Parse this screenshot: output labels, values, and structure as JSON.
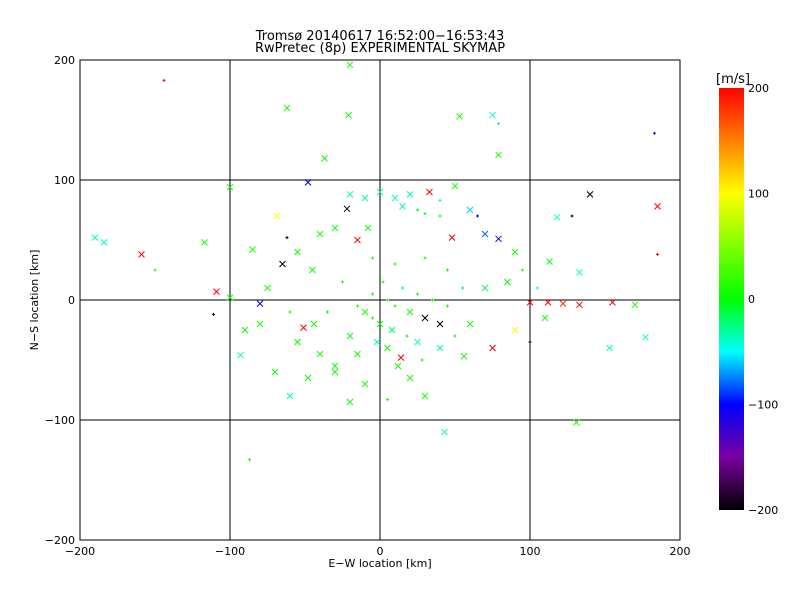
{
  "chart_data": {
    "type": "scatter",
    "title": "Tromsø 20140617 16:52:00−16:53:43",
    "subtitle": "RwPretec (8p) EXPERIMENTAL SKYMAP",
    "xlabel": "E−W location [km]",
    "ylabel": "N−S location [km]",
    "xlim": [
      -200,
      200
    ],
    "ylim": [
      -200,
      200
    ],
    "xticks": [
      "−200",
      "−100",
      "0",
      "100",
      "200"
    ],
    "xtick_values": [
      -200,
      -100,
      0,
      100,
      200
    ],
    "yticks": [
      "−200",
      "−100",
      "0",
      "100",
      "200"
    ],
    "ytick_values": [
      -200,
      -100,
      0,
      100,
      200
    ],
    "grid_values": [
      -100,
      0,
      100
    ],
    "colorbar": {
      "label": "[m/s]",
      "range": [
        -200,
        200
      ],
      "ticks": [
        "200",
        "100",
        "0",
        "−100",
        "−200"
      ],
      "tick_values": [
        200,
        100,
        0,
        -100,
        -200
      ],
      "stops": [
        {
          "v": -200,
          "color": "#000000"
        },
        {
          "v": -150,
          "color": "#7a00a0"
        },
        {
          "v": -100,
          "color": "#0000ff"
        },
        {
          "v": -50,
          "color": "#00ffff"
        },
        {
          "v": 0,
          "color": "#00ff00"
        },
        {
          "v": 100,
          "color": "#ffff00"
        },
        {
          "v": 200,
          "color": "#ff0000"
        }
      ]
    },
    "points_format": [
      "x_km",
      "y_km",
      "velocity_m_s",
      "marker"
    ],
    "points": [
      [
        -144,
        183,
        200,
        "+"
      ],
      [
        -20,
        196,
        5,
        "x"
      ],
      [
        -62,
        160,
        10,
        "x"
      ],
      [
        -21,
        154,
        5,
        "x"
      ],
      [
        53,
        153,
        10,
        "x"
      ],
      [
        75,
        154,
        -40,
        "x"
      ],
      [
        79,
        147,
        -20,
        "+"
      ],
      [
        183,
        139,
        -110,
        "+"
      ],
      [
        79,
        121,
        10,
        "x"
      ],
      [
        -37,
        118,
        5,
        "x"
      ],
      [
        -100,
        94,
        5,
        "x"
      ],
      [
        -48,
        98,
        -100,
        "x"
      ],
      [
        140,
        88,
        -200,
        "x"
      ],
      [
        33,
        90,
        200,
        "x"
      ],
      [
        185,
        78,
        200,
        "x"
      ],
      [
        -159,
        38,
        200,
        "x"
      ],
      [
        -184,
        48,
        -40,
        "x"
      ],
      [
        -190,
        52,
        -40,
        "x"
      ],
      [
        -117,
        48,
        10,
        "x"
      ],
      [
        -109,
        7,
        200,
        "x"
      ],
      [
        -100,
        2,
        10,
        "x"
      ],
      [
        155,
        -2,
        200,
        "x"
      ],
      [
        133,
        -4,
        200,
        "x"
      ],
      [
        112,
        -2,
        200,
        "x"
      ],
      [
        100,
        -2,
        200,
        "x"
      ],
      [
        122,
        -3,
        180,
        "x"
      ],
      [
        170,
        -4,
        10,
        "x"
      ],
      [
        153,
        -40,
        -40,
        "x"
      ],
      [
        177,
        -31,
        -40,
        "x"
      ],
      [
        131,
        -102,
        10,
        "x"
      ],
      [
        -87,
        -133,
        10,
        "+"
      ],
      [
        43,
        -110,
        -40,
        "x"
      ],
      [
        133,
        23,
        -40,
        "x"
      ],
      [
        113,
        32,
        -5,
        "x"
      ],
      [
        118,
        69,
        -40,
        "x"
      ],
      [
        128,
        70,
        -200,
        "+"
      ],
      [
        185,
        38,
        200,
        "+"
      ],
      [
        79,
        51,
        -100,
        "x"
      ],
      [
        48,
        52,
        200,
        "x"
      ],
      [
        -69,
        70,
        100,
        "x"
      ],
      [
        -22,
        76,
        -200,
        "x"
      ],
      [
        -93,
        -46,
        -40,
        "x"
      ],
      [
        -51,
        -23,
        200,
        "x"
      ],
      [
        14,
        -48,
        200,
        "x"
      ],
      [
        56,
        -47,
        10,
        "x"
      ],
      [
        -111,
        -12,
        -200,
        "+"
      ],
      [
        -80,
        -3,
        -100,
        "x"
      ],
      [
        -44,
        -20,
        5,
        "x"
      ],
      [
        -60,
        -80,
        -30,
        "x"
      ],
      [
        -30,
        -55,
        5,
        "x"
      ],
      [
        -10,
        -70,
        10,
        "x"
      ],
      [
        20,
        -65,
        10,
        "x"
      ],
      [
        30,
        -80,
        5,
        "x"
      ],
      [
        5,
        -83,
        10,
        "+"
      ],
      [
        -20,
        -85,
        5,
        "x"
      ],
      [
        -70,
        -60,
        5,
        "x"
      ],
      [
        -80,
        -20,
        10,
        "x"
      ],
      [
        -75,
        10,
        10,
        "x"
      ],
      [
        -65,
        30,
        -200,
        "x"
      ],
      [
        -55,
        40,
        5,
        "x"
      ],
      [
        -40,
        55,
        10,
        "x"
      ],
      [
        -30,
        60,
        5,
        "x"
      ],
      [
        -15,
        50,
        200,
        "x"
      ],
      [
        0,
        90,
        -40,
        "x"
      ],
      [
        10,
        85,
        -40,
        "x"
      ],
      [
        20,
        88,
        -30,
        "x"
      ],
      [
        25,
        75,
        -10,
        "+"
      ],
      [
        30,
        72,
        -20,
        "+"
      ],
      [
        40,
        70,
        -10,
        "+"
      ],
      [
        15,
        78,
        -30,
        "x"
      ],
      [
        -10,
        85,
        -30,
        "x"
      ],
      [
        -20,
        88,
        -40,
        "x"
      ],
      [
        60,
        75,
        -60,
        "x"
      ],
      [
        70,
        55,
        -80,
        "x"
      ],
      [
        65,
        70,
        -100,
        "+"
      ],
      [
        90,
        40,
        10,
        "x"
      ],
      [
        85,
        15,
        5,
        "x"
      ],
      [
        95,
        25,
        5,
        "+"
      ],
      [
        70,
        10,
        -20,
        "x"
      ],
      [
        60,
        -20,
        10,
        "x"
      ],
      [
        75,
        -40,
        200,
        "x"
      ],
      [
        90,
        -25,
        100,
        "x"
      ],
      [
        100,
        -35,
        -200,
        "+"
      ],
      [
        40,
        -20,
        -200,
        "x"
      ],
      [
        30,
        -15,
        -200,
        "x"
      ],
      [
        20,
        -10,
        10,
        "x"
      ],
      [
        10,
        -5,
        5,
        "+"
      ],
      [
        5,
        0,
        0,
        "+"
      ],
      [
        -5,
        5,
        5,
        "+"
      ],
      [
        -10,
        -10,
        10,
        "x"
      ],
      [
        15,
        10,
        -20,
        "+"
      ],
      [
        25,
        5,
        -10,
        "+"
      ],
      [
        35,
        0,
        0,
        "+"
      ],
      [
        45,
        -5,
        5,
        "+"
      ],
      [
        0,
        -20,
        5,
        "x"
      ],
      [
        -20,
        -30,
        10,
        "x"
      ],
      [
        -35,
        -10,
        5,
        "+"
      ],
      [
        -25,
        15,
        10,
        "+"
      ],
      [
        -45,
        25,
        5,
        "x"
      ],
      [
        -5,
        35,
        10,
        "+"
      ],
      [
        10,
        30,
        5,
        "+"
      ],
      [
        30,
        35,
        10,
        "+"
      ],
      [
        45,
        25,
        5,
        "+"
      ],
      [
        55,
        10,
        -10,
        "+"
      ],
      [
        50,
        -30,
        5,
        "+"
      ],
      [
        40,
        -40,
        -30,
        "x"
      ],
      [
        25,
        -35,
        -40,
        "x"
      ],
      [
        5,
        -40,
        5,
        "x"
      ],
      [
        -15,
        -45,
        10,
        "x"
      ],
      [
        -40,
        -45,
        10,
        "x"
      ],
      [
        -55,
        -35,
        5,
        "x"
      ],
      [
        -60,
        -10,
        5,
        "+"
      ],
      [
        -15,
        -5,
        5,
        "+"
      ],
      [
        -5,
        -15,
        10,
        "+"
      ],
      [
        8,
        -25,
        -20,
        "x"
      ],
      [
        18,
        -30,
        5,
        "+"
      ],
      [
        2,
        15,
        10,
        "+"
      ],
      [
        -30,
        -60,
        5,
        "x"
      ],
      [
        12,
        -55,
        10,
        "x"
      ],
      [
        -2,
        -35,
        -30,
        "x"
      ],
      [
        28,
        -50,
        5,
        "+"
      ],
      [
        -48,
        -65,
        5,
        "x"
      ],
      [
        -8,
        60,
        5,
        "x"
      ],
      [
        -62,
        52,
        -200,
        "+"
      ],
      [
        50,
        95,
        10,
        "x"
      ],
      [
        40,
        83,
        -30,
        "+"
      ],
      [
        -85,
        42,
        10,
        "x"
      ],
      [
        -90,
        -25,
        5,
        "x"
      ],
      [
        110,
        -15,
        10,
        "x"
      ],
      [
        105,
        10,
        -40,
        "+"
      ],
      [
        -150,
        25,
        10,
        "+"
      ]
    ]
  }
}
